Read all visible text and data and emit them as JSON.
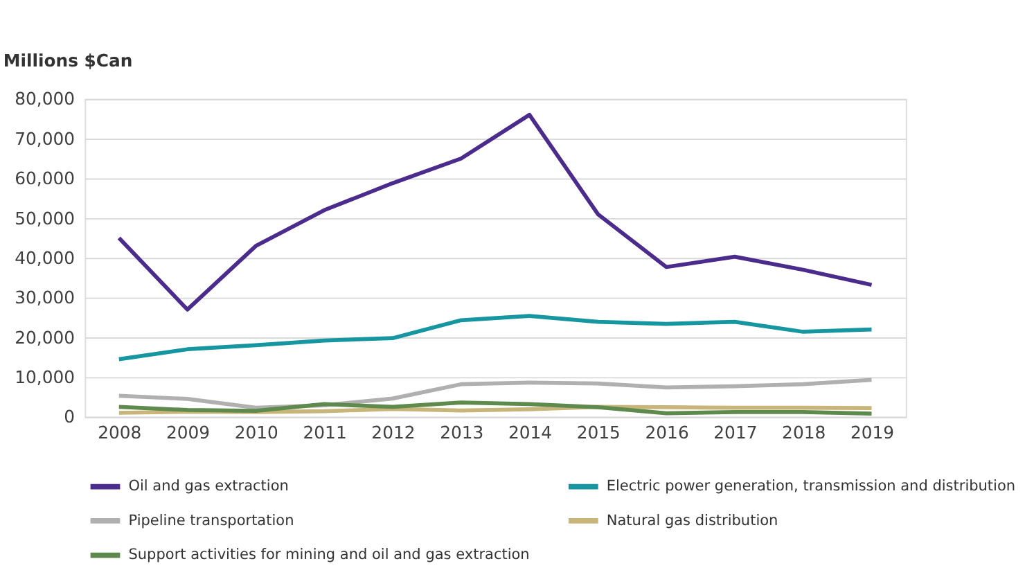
{
  "chart_data": {
    "type": "line",
    "ylabel": "Millions $Can",
    "categories": [
      "2008",
      "2009",
      "2010",
      "2011",
      "2012",
      "2013",
      "2014",
      "2015",
      "2016",
      "2017",
      "2018",
      "2019"
    ],
    "series": [
      {
        "name": "Oil and gas extraction",
        "color": "#4b2c8c",
        "values": [
          45000,
          27000,
          43000,
          52000,
          58800,
          65000,
          76000,
          51000,
          37700,
          40300,
          37000,
          33200
        ]
      },
      {
        "name": "Electric power generation, transmission and distribution",
        "color": "#1596a0",
        "values": [
          14500,
          17000,
          18000,
          19200,
          19800,
          24300,
          25400,
          23900,
          23400,
          23900,
          21400,
          22000
        ]
      },
      {
        "name": "Pipeline transportation",
        "color": "#b0b0b0",
        "values": [
          5300,
          4500,
          2300,
          2900,
          4600,
          8200,
          8600,
          8400,
          7400,
          7700,
          8200,
          9300
        ]
      },
      {
        "name": "Natural gas distribution",
        "color": "#c8b57a",
        "values": [
          1000,
          1300,
          1200,
          1400,
          2000,
          1600,
          1900,
          2500,
          2400,
          2300,
          2300,
          2200
        ]
      },
      {
        "name": "Support activities for mining and oil and gas extraction",
        "color": "#5e8a4d",
        "values": [
          2500,
          1700,
          1500,
          3200,
          2500,
          3600,
          3200,
          2400,
          900,
          1200,
          1200,
          800
        ]
      }
    ],
    "ylim": [
      0,
      80000
    ],
    "yticks": [
      0,
      {
        "value": 10000,
        "label": "10,000"
      },
      {
        "value": 20000,
        "label": "20,000"
      },
      {
        "value": 30000,
        "label": "30,000"
      },
      {
        "value": 40000,
        "label": "40,000"
      },
      {
        "value": 50000,
        "label": "50,000"
      },
      {
        "value": 60000,
        "label": "60,000"
      },
      {
        "value": 70000,
        "label": "70,000"
      },
      {
        "value": 80000,
        "label": "80,000"
      }
    ],
    "grid": "y",
    "legend": "bottom",
    "marker": "none",
    "line_style": "solid"
  }
}
